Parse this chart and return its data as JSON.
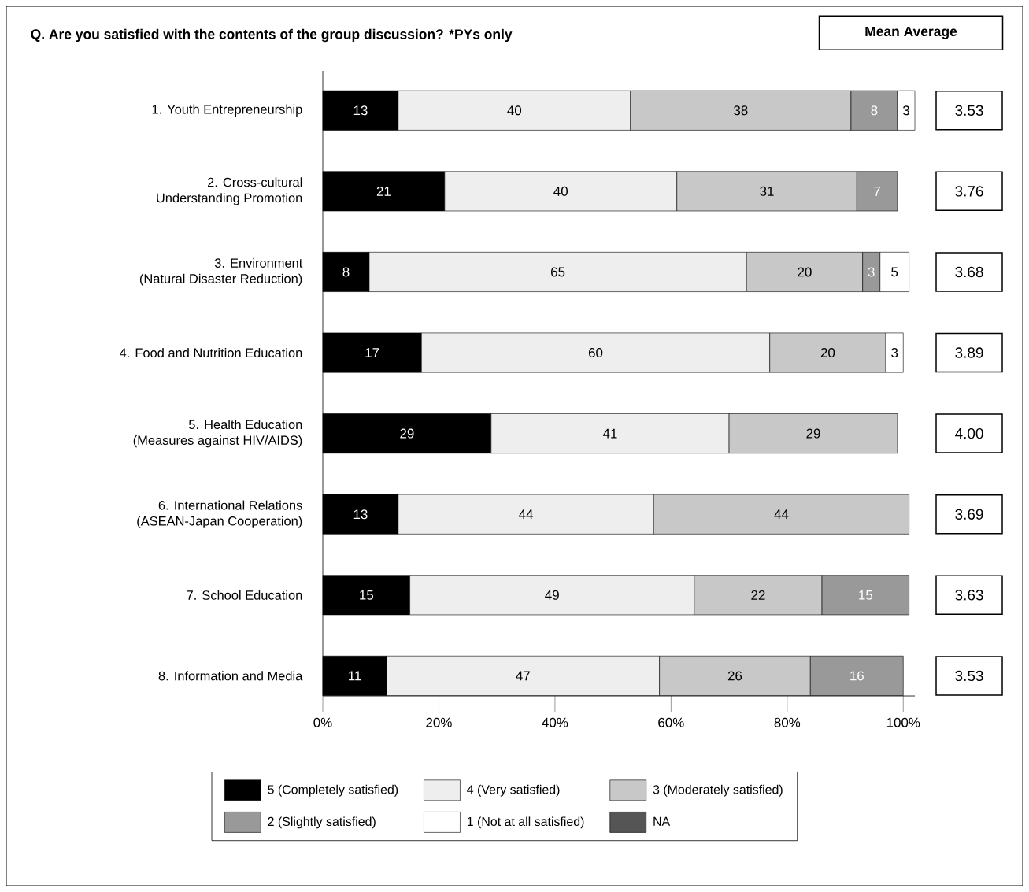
{
  "chart_data": {
    "type": "bar",
    "orientation": "horizontal",
    "stacked": true,
    "title": "Q.  Are you satisfied with the contents of the group discussion?  *PYs only",
    "categories": [
      "1. Youth Entrepreneurship",
      "2. Cross-cultural\nUnderstanding Promotion",
      "3. Environment\n(Natural Disaster Reduction)",
      "4. Food and Nutrition Education",
      "5. Health Education\n(Measures against HIV/AIDS)",
      "6. International Relations\n(ASEAN-Japan Cooperation)",
      "7. School Education",
      "8. Information and Media"
    ],
    "series": [
      {
        "name": "5 (Completely satisfied)",
        "color": "#000000",
        "values": [
          13,
          21,
          8,
          17,
          29,
          13,
          15,
          11
        ]
      },
      {
        "name": "4 (Very satisfied)",
        "color": "#eeeeee",
        "values": [
          40,
          40,
          65,
          60,
          41,
          44,
          49,
          47
        ]
      },
      {
        "name": "3 (Moderately satisfied)",
        "color": "#c8c8c8",
        "values": [
          38,
          31,
          20,
          20,
          29,
          44,
          22,
          26
        ]
      },
      {
        "name": "2 (Slightly satisfied)",
        "color": "#999999",
        "values": [
          8,
          7,
          3,
          null,
          null,
          null,
          15,
          16
        ]
      },
      {
        "name": "1 (Not at all satisfied)",
        "color": "#ffffff",
        "values": [
          3,
          null,
          5,
          3,
          null,
          null,
          null,
          null
        ]
      },
      {
        "name": "NA",
        "color": "#555555",
        "values": [
          null,
          null,
          null,
          null,
          null,
          null,
          null,
          null
        ]
      }
    ],
    "xlim": [
      0,
      102
    ],
    "xticks": [
      {
        "value": 0,
        "label": "0%"
      },
      {
        "value": 20,
        "label": "20%"
      },
      {
        "value": 40,
        "label": "40%"
      },
      {
        "value": 60,
        "label": "60%"
      },
      {
        "value": 80,
        "label": "80%"
      },
      {
        "value": 100,
        "label": "100%"
      }
    ],
    "data_labels": true,
    "legend": "bottom",
    "grid": false,
    "annotations": [
      "Mean Average",
      "3.53",
      "3.76",
      "3.68",
      "3.89",
      "4.00",
      "3.69",
      "3.63",
      "3.53"
    ]
  }
}
